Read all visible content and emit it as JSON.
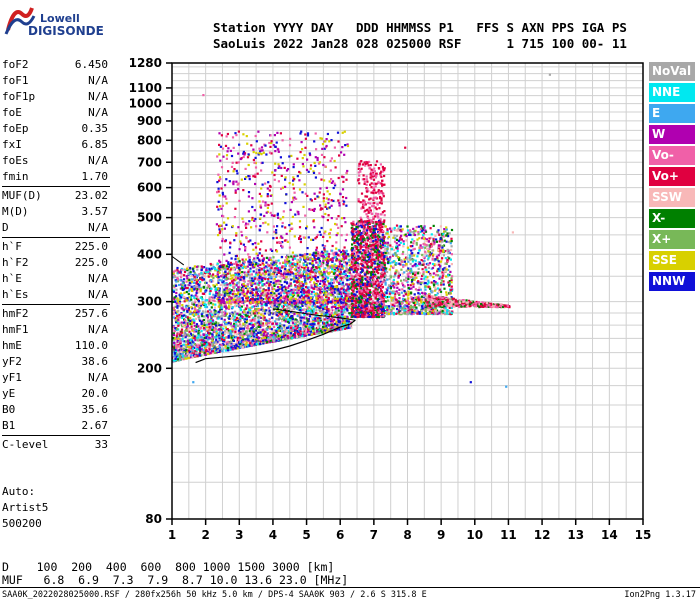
{
  "logo": {
    "line1": "Lowell",
    "line2": "DIGISONDE"
  },
  "header": {
    "line1": "Station YYYY DAY   DDD HHMMSS P1   FFS S AXN PPS IGA PS",
    "line2": "SaoLuis 2022 Jan28 028 025000 RSF      1 715 100 00- 11"
  },
  "params": {
    "group1": [
      {
        "name": "foF2",
        "value": "6.450"
      },
      {
        "name": "foF1",
        "value": "N/A"
      },
      {
        "name": "foF1p",
        "value": "N/A"
      },
      {
        "name": "foE",
        "value": "N/A"
      },
      {
        "name": "foEp",
        "value": "0.35"
      },
      {
        "name": "fxI",
        "value": "6.85"
      },
      {
        "name": "foEs",
        "value": "N/A"
      },
      {
        "name": "fmin",
        "value": "1.70"
      }
    ],
    "group2": [
      {
        "name": "MUF(D)",
        "value": "23.02"
      },
      {
        "name": "M(D)",
        "value": "3.57"
      },
      {
        "name": "D",
        "value": "N/A"
      }
    ],
    "group3": [
      {
        "name": "h`F",
        "value": "225.0"
      },
      {
        "name": "h`F2",
        "value": "225.0"
      },
      {
        "name": "h`E",
        "value": "N/A"
      },
      {
        "name": "h`Es",
        "value": "N/A"
      }
    ],
    "group4": [
      {
        "name": "hmF2",
        "value": "257.6"
      },
      {
        "name": "hmF1",
        "value": "N/A"
      },
      {
        "name": "hmE",
        "value": "110.0"
      },
      {
        "name": "yF2",
        "value": "38.6"
      },
      {
        "name": "yF1",
        "value": "N/A"
      },
      {
        "name": "yE",
        "value": "20.0"
      },
      {
        "name": "B0",
        "value": "35.6"
      },
      {
        "name": "B1",
        "value": "2.67"
      }
    ],
    "group5": [
      {
        "name": "C-level",
        "value": "33"
      }
    ]
  },
  "auto": {
    "line1": "Auto:",
    "line2": "Artist5",
    "line3": "500200"
  },
  "legend": [
    {
      "label": "NoVal",
      "color": "#a8a8a8"
    },
    {
      "label": "NNE",
      "color": "#00e8f0"
    },
    {
      "label": "E",
      "color": "#3ea8f0"
    },
    {
      "label": "W",
      "color": "#b000b0"
    },
    {
      "label": "Vo-",
      "color": "#f060a8"
    },
    {
      "label": "Vo+",
      "color": "#e00040"
    },
    {
      "label": "SSW",
      "color": "#f8b8b8"
    },
    {
      "label": "X-",
      "color": "#008000"
    },
    {
      "label": "X+",
      "color": "#78b858"
    },
    {
      "label": "SSE",
      "color": "#d8d000"
    },
    {
      "label": "NNW",
      "color": "#1010d8"
    }
  ],
  "chart_data": {
    "type": "scatter",
    "title": "",
    "xlabel": "",
    "ylabel": "",
    "xlim": [
      1,
      15
    ],
    "ylim_log": [
      80,
      1280
    ],
    "y_ticks": [
      80,
      200,
      300,
      400,
      500,
      600,
      700,
      800,
      900,
      1000,
      1100,
      1280
    ],
    "x_ticks": [
      1,
      2,
      3,
      4,
      5,
      6,
      7,
      8,
      9,
      10,
      11,
      12,
      13,
      14,
      15
    ],
    "grid": true,
    "trace_curve": [
      [
        1.7,
        207
      ],
      [
        2.0,
        212
      ],
      [
        2.5,
        214
      ],
      [
        3.0,
        216
      ],
      [
        3.5,
        219
      ],
      [
        4.0,
        223
      ],
      [
        4.5,
        229
      ],
      [
        5.0,
        237
      ],
      [
        5.5,
        246
      ],
      [
        6.0,
        257
      ],
      [
        6.3,
        262
      ],
      [
        6.45,
        268
      ]
    ],
    "echo_regions": [
      {
        "xmin": 1.0,
        "xmax": 2.2,
        "hmin": 205,
        "hmax": 400
      },
      {
        "xmin": 2.2,
        "xmax": 6.2,
        "hmin": 210,
        "hmax": 650
      },
      {
        "xmin": 6.3,
        "xmax": 7.3,
        "hmin": 270,
        "hmax": 500
      },
      {
        "xmin": 7.3,
        "xmax": 9.3,
        "hmin": 280,
        "hmax": 480
      },
      {
        "xmin": 9.3,
        "xmax": 11.0,
        "hmin": 290,
        "hmax": 320
      }
    ]
  },
  "footer": {
    "line1": "D    100  200  400  600  800 1000 1500 3000 [km]",
    "line2": "MUF   6.8  6.9  7.3  7.9  8.7 10.0 13.6 23.0 [MHz]",
    "line3": "SAA0K_2022028025000.RSF / 280fx256h 50 kHz 5.0 km / DPS-4 SAA0K 903 / 2.6 S 315.8 E",
    "line4": "Ion2Png 1.3.17"
  }
}
